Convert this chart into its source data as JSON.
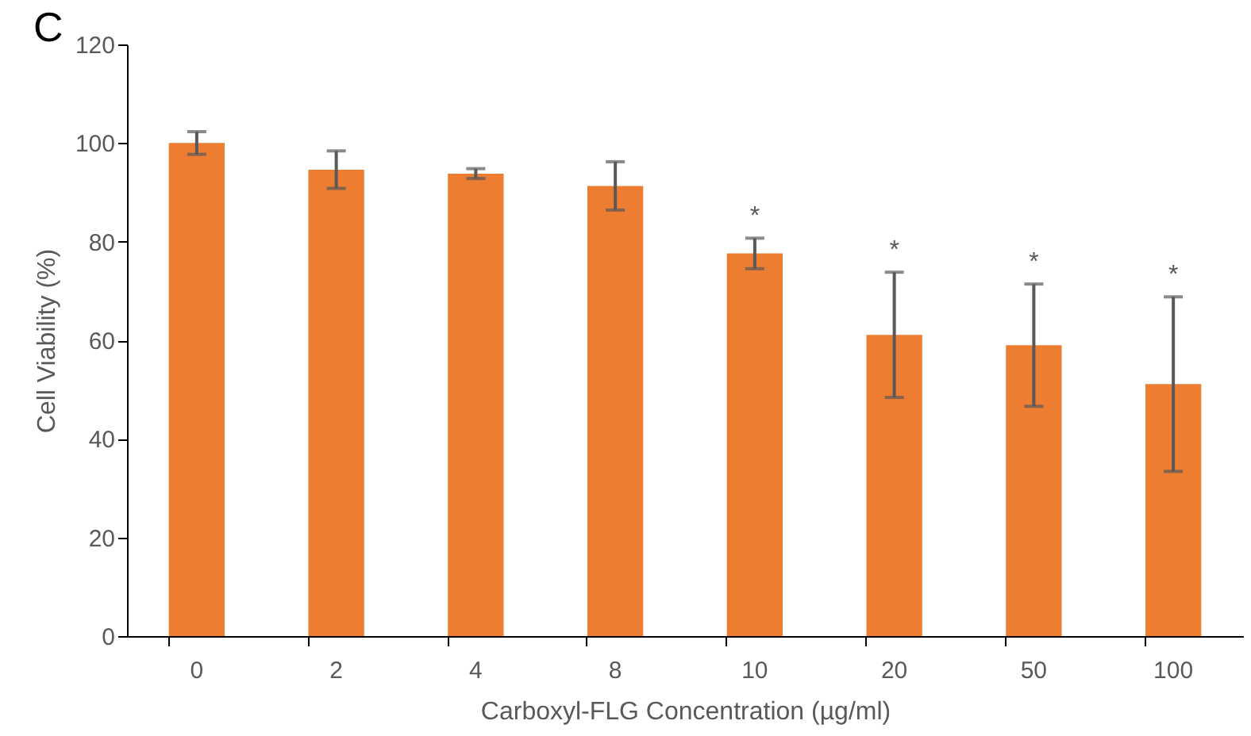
{
  "chart_data": {
    "type": "bar",
    "xlabel": "Carboxyl-FLG Concentration (µg/ml)",
    "ylabel": "Cell Viability (%)",
    "categories": [
      "0",
      "2",
      "4",
      "8",
      "10",
      "20",
      "50",
      "100"
    ],
    "values": [
      100,
      94.6,
      93.8,
      91.3,
      77.6,
      61.1,
      59,
      51.1
    ],
    "errors": [
      2.3,
      3.8,
      1,
      4.9,
      3.1,
      12.7,
      12.4,
      17.7
    ],
    "color": "#ed7d31",
    "ylim": [
      0,
      120
    ],
    "yticks": [
      0,
      20,
      40,
      60,
      80,
      100,
      120
    ],
    "grid": false,
    "annotations": [
      "C",
      {
        "text": "*",
        "x": "10",
        "y": 80.7
      },
      {
        "text": "*",
        "x": "20",
        "y": 73.8
      },
      {
        "text": "*",
        "x": "50",
        "y": 71.4
      },
      {
        "text": "*",
        "x": "100",
        "y": 68.8
      }
    ]
  }
}
